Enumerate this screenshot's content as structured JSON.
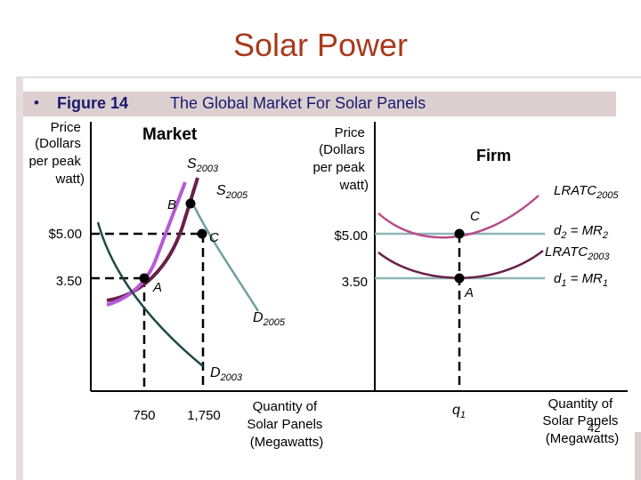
{
  "slide": {
    "title": "Solar Power",
    "page_number": "42"
  },
  "figure": {
    "bullet": "•",
    "number": "Figure 14",
    "title": "The Global Market For Solar Panels"
  },
  "market": {
    "heading": "Market",
    "y_axis_label": [
      "Price",
      "(Dollars",
      "per peak",
      "watt)"
    ],
    "x_axis_label": [
      "Quantity of",
      "Solar Panels",
      "(Megawatts)"
    ],
    "price_ticks": [
      "$5.00",
      "3.50"
    ],
    "quantity_ticks": [
      "750",
      "1,750"
    ],
    "curves": {
      "s2003": {
        "base": "S",
        "sub": "2003"
      },
      "s2005": {
        "base": "S",
        "sub": "2005"
      },
      "d2005": {
        "base": "D",
        "sub": "2005"
      },
      "d2003": {
        "base": "D",
        "sub": "2003"
      }
    },
    "points": [
      "B",
      "C",
      "A"
    ]
  },
  "firm": {
    "heading": "Firm",
    "y_axis_label": [
      "Price",
      "(Dollars",
      "per peak",
      "watt)"
    ],
    "x_axis_label": [
      "Quantity of",
      "Solar Panels",
      "(Megawatts)"
    ],
    "price_ticks": [
      "$5.00",
      "3.50"
    ],
    "quantity_tick": {
      "base": "q",
      "sub": "1"
    },
    "curves": {
      "lratc2005": {
        "base": "LRATC",
        "sub": "2005"
      },
      "lratc2003": {
        "base": "LRATC",
        "sub": "2003"
      },
      "d2": {
        "base": "d",
        "sub": "2",
        "rest": " = MR",
        "sub2": "2"
      },
      "d1": {
        "base": "d",
        "sub": "1",
        "rest": " = MR",
        "sub2": "1"
      }
    },
    "points": [
      "C",
      "A"
    ]
  },
  "colors": {
    "title": "#a83a1e",
    "header_band": "#dccfd0",
    "header_text": "#1a1a6e",
    "s2003": "#6a2048",
    "s2005": "#b65ad6",
    "d2003": "#1e4a48",
    "d2005": "#6f9ea0",
    "lratc2005": "#b84a8a",
    "lratc2003": "#6a2048",
    "d_lines": "#8fb5b8"
  }
}
